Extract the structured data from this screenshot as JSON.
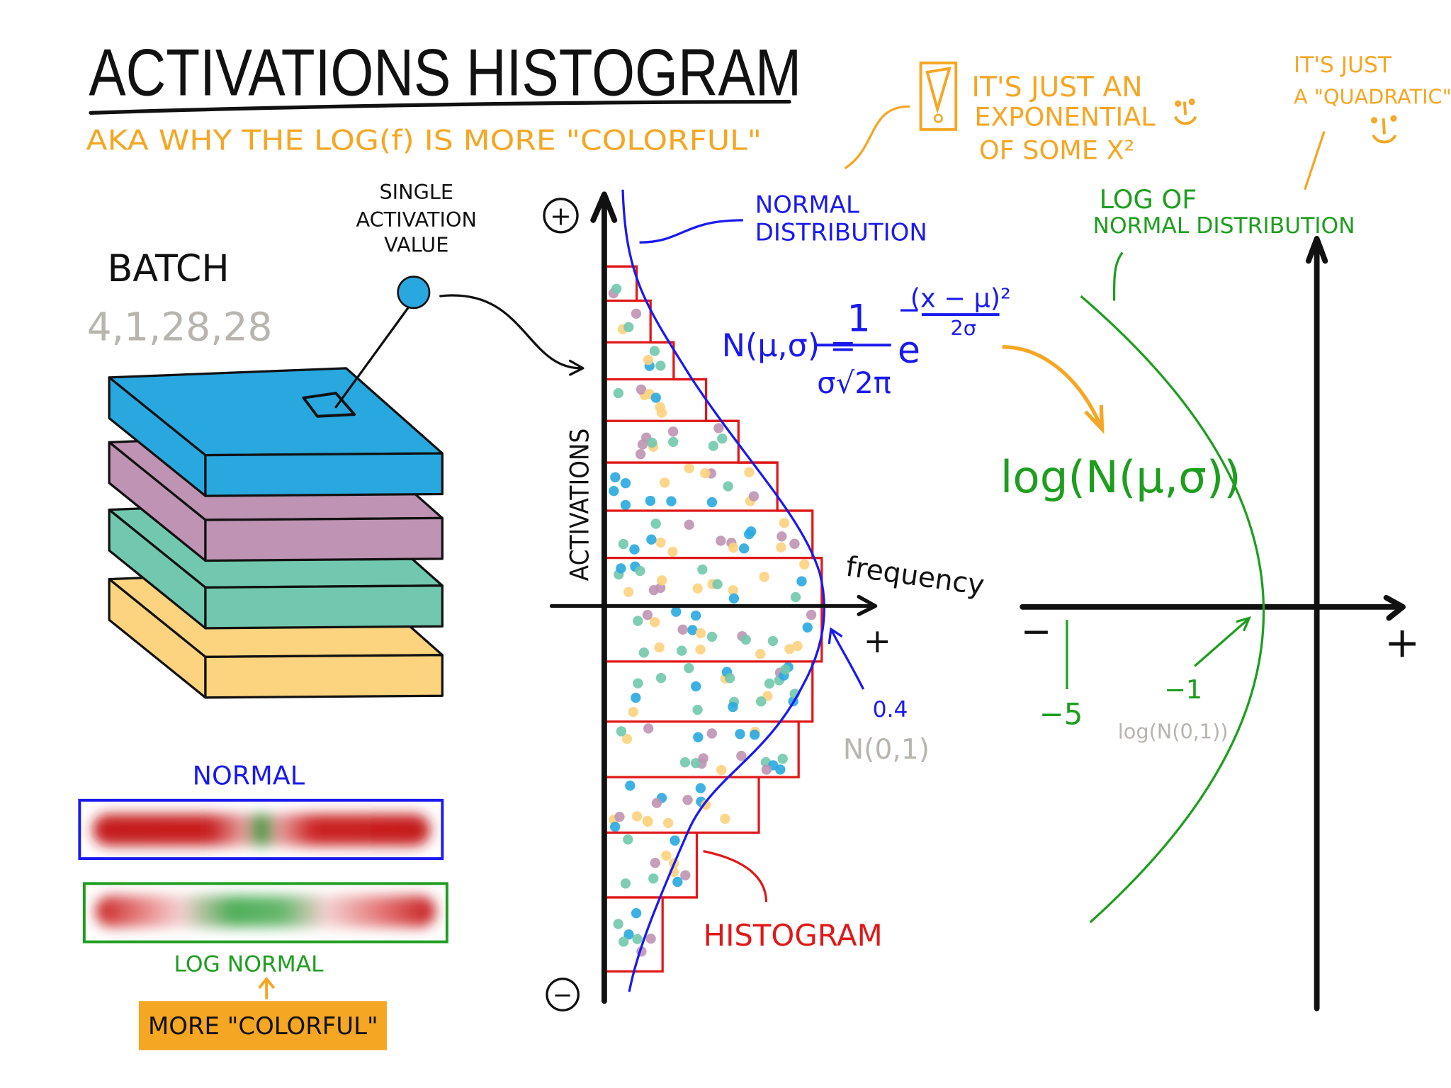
{
  "title": "ACTIVATIONS  HISTOGRAM",
  "subtitle": "AKA  WHY  THE  LOG(f)  IS  MORE  \"COLORFUL\"",
  "batch": {
    "label": "BATCH",
    "shape": "4,1,28,28",
    "single_value_lines": [
      "SINGLE",
      "ACTIVATION",
      "VALUE"
    ],
    "slab_colors": [
      "#29a8e0",
      "#bf93b3",
      "#72c8ae",
      "#fcd37e"
    ]
  },
  "histogram": {
    "y_axis_label": "ACTIVATIONS",
    "x_axis_label": "frequency",
    "plus_sign": "+",
    "top_marker": "+",
    "bottom_marker": "−",
    "normal_label_lines": [
      "NORMAL",
      "DISTRIBUTION"
    ],
    "histogram_label": "HISTOGRAM",
    "peak_value": "0.4",
    "peak_dist": "N(0,1)",
    "curve_color": "#1a1aee",
    "bin_color": "#e01818"
  },
  "formula": {
    "lhs": "N(μ,σ) =",
    "numerator": "1",
    "denominator": "σ√2π",
    "base": "e",
    "exponent_sign": "−",
    "exponent_numerator": "(x − μ)²",
    "exponent_denominator": "2σ"
  },
  "log_formula": "log(N(μ,σ))",
  "notes": {
    "warning_icon": "exclamation-box-icon",
    "exponential_lines": [
      "IT'S  JUST  AN",
      "EXPONENTIAL",
      "OF  SOME  X²"
    ],
    "quadratic_lines": [
      "IT'S  JUST",
      "A \"QUADRATIC\""
    ],
    "smiley": "smiley-icon"
  },
  "log_plot": {
    "title_lines": [
      "LOG  OF",
      "NORMAL  DISTRIBUTION"
    ],
    "minus_sign": "−",
    "plus_sign": "+",
    "tick_minus5": "−5",
    "tick_minus1": "−1",
    "peak_dist": "log(N(0,1))",
    "curve_color": "#1e9e1e"
  },
  "color_bars": {
    "normal_label": "NORMAL",
    "log_normal_label": "LOG  NORMAL",
    "more_colorful": "MORE \"COLORFUL\"",
    "normal_border": "#1a1aee",
    "log_border": "#1e9e1e",
    "button_color": "#f5a623"
  },
  "colors": {
    "orange": "#f5a623",
    "blue": "#1a1aee",
    "green": "#1e9e1e",
    "red": "#e01818",
    "gray": "#b8b4ae"
  }
}
